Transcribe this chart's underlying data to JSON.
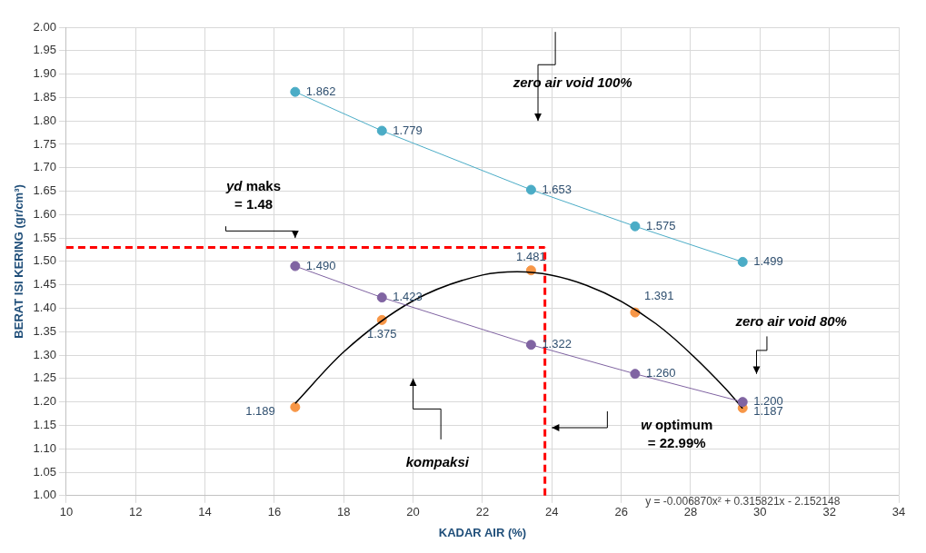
{
  "chart_data": {
    "type": "line",
    "xlabel": "KADAR AIR (%)",
    "ylabel": "BERAT ISI KERING (gr/cm³)",
    "xlim": [
      10,
      34
    ],
    "xticks": [
      10,
      12,
      14,
      16,
      18,
      20,
      22,
      24,
      26,
      28,
      30,
      32,
      34
    ],
    "ylim": [
      1.0,
      2.0
    ],
    "yticks": [
      {
        "value": 1.0,
        "label": "1.00"
      },
      {
        "value": 1.05,
        "label": "1.05"
      },
      {
        "value": 1.1,
        "label": "1.10"
      },
      {
        "value": 1.15,
        "label": "1.15"
      },
      {
        "value": 1.2,
        "label": "1.20"
      },
      {
        "value": 1.25,
        "label": "1.25"
      },
      {
        "value": 1.3,
        "label": "1.30"
      },
      {
        "value": 1.35,
        "label": "1.35"
      },
      {
        "value": 1.4,
        "label": "1.40"
      },
      {
        "value": 1.45,
        "label": "1.45"
      },
      {
        "value": 1.5,
        "label": "1.50"
      },
      {
        "value": 1.55,
        "label": "1.55"
      },
      {
        "value": 1.6,
        "label": "1.60"
      },
      {
        "value": 1.65,
        "label": "1.65"
      },
      {
        "value": 1.7,
        "label": "1.70"
      },
      {
        "value": 1.75,
        "label": "1.75"
      },
      {
        "value": 1.8,
        "label": "1.80"
      },
      {
        "value": 1.85,
        "label": "1.85"
      },
      {
        "value": 1.9,
        "label": "1.90"
      },
      {
        "value": 1.95,
        "label": "1.95"
      },
      {
        "value": 2.0,
        "label": "2.00"
      }
    ],
    "grid": true,
    "legend": false,
    "series": [
      {
        "type": "line",
        "marker": "circle",
        "color": "#4bacc6",
        "x": [
          16.6,
          19.1,
          23.4,
          26.4,
          29.5
        ],
        "values": [
          1.862,
          1.779,
          1.653,
          1.575,
          1.499
        ],
        "value_labels": [
          "1.862",
          "1.779",
          "1.653",
          "1.575",
          "1.499"
        ]
      },
      {
        "type": "line",
        "marker": "circle",
        "color": "#8064a2",
        "x": [
          16.6,
          19.1,
          23.4,
          26.4,
          29.5
        ],
        "values": [
          1.49,
          1.423,
          1.322,
          1.26,
          1.2
        ],
        "value_labels": [
          "1.490",
          "1.423",
          "1.322",
          "1.260",
          "1.200"
        ]
      },
      {
        "type": "line",
        "marker": "none",
        "color": "#000000",
        "x": [
          16.6,
          18,
          20,
          22,
          23,
          25,
          27,
          29,
          29.5
        ],
        "values": [
          1.197,
          1.307,
          1.416,
          1.471,
          1.478,
          1.449,
          1.367,
          1.229,
          1.186
        ]
      },
      {
        "type": "scatter",
        "marker": "circle",
        "color": "#f79646",
        "x": [
          16.6,
          19.1,
          23.4,
          26.4,
          29.5
        ],
        "values": [
          1.189,
          1.375,
          1.481,
          1.391,
          1.187
        ],
        "value_labels": [
          "1.189",
          "1.375",
          "1.481",
          "1.391",
          "1.187"
        ]
      }
    ],
    "ref_lines": [
      {
        "axis": "y",
        "value": 1.53,
        "color": "#ff0000",
        "line_style": "dashed"
      },
      {
        "axis": "x",
        "value": 23.8,
        "color": "#ff0000",
        "line_style": "dashed"
      }
    ],
    "annotations": [
      "zero air void 100%",
      "zero air void 80%",
      "yd maks\n= 1.48",
      "kompaksi",
      "w optimum\n= 22.99%",
      "y = -0.006870x² + 0.315821x - 2.152148"
    ]
  }
}
